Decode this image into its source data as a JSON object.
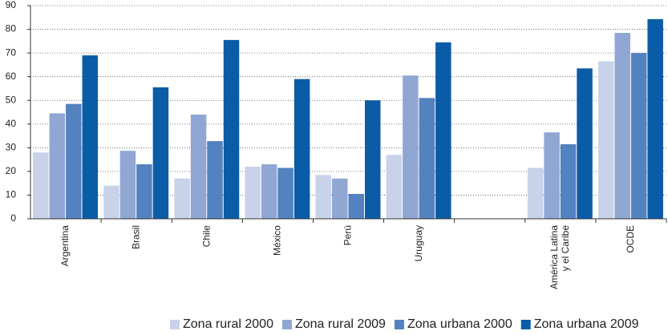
{
  "chart_data": {
    "type": "bar",
    "categories": [
      "Argentina",
      "Brasil",
      "Chile",
      "México",
      "Perú",
      "Uruguay",
      null,
      "América Latina\ny el Caribe",
      "OCDE"
    ],
    "series": [
      {
        "name": "Zona rural 2000",
        "color": "#c8d3ea",
        "values": [
          28,
          14,
          17,
          22,
          18.5,
          27,
          null,
          21.5,
          66.5
        ]
      },
      {
        "name": "Zona rural 2009",
        "color": "#8fa7d2",
        "values": [
          44.5,
          28.7,
          44,
          23,
          17,
          60.5,
          null,
          36.5,
          78.5
        ]
      },
      {
        "name": "Zona urbana 2000",
        "color": "#5382c0",
        "values": [
          48.5,
          23,
          32.8,
          21.5,
          10.5,
          51,
          null,
          31.5,
          70
        ]
      },
      {
        "name": "Zona urbana 2009",
        "color": "#0b5ca7",
        "values": [
          69,
          55.5,
          75.5,
          59,
          50,
          74.5,
          null,
          63.5,
          84.3
        ]
      }
    ],
    "ylim": [
      0,
      90
    ],
    "yticks": [
      0,
      10,
      20,
      30,
      40,
      50,
      60,
      70,
      80,
      90
    ],
    "grid": true,
    "legend": "bottom"
  }
}
